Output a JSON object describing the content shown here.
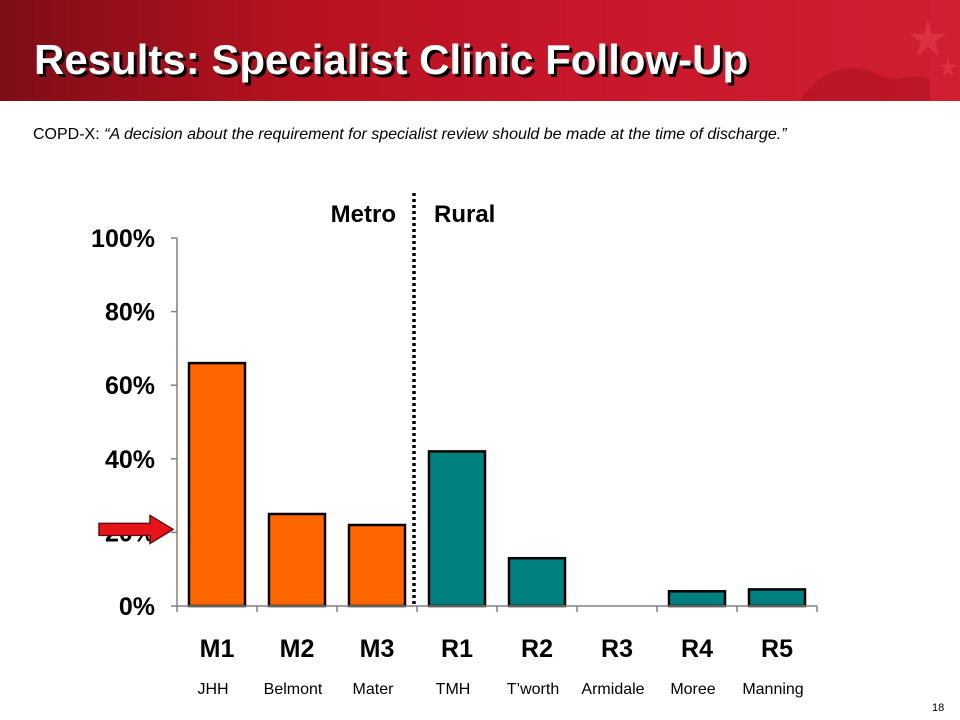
{
  "slide": {
    "title": "Results: Specialist Clinic Follow-Up",
    "quote_prefix": "COPD-X: ",
    "quote_body": "“A decision about the requirement for specialist review should be made at the time of discharge.”",
    "page_number": "18"
  },
  "colors": {
    "header": "#c8162a",
    "metro_bar": "#ff6600",
    "rural_bar": "#008080",
    "arrow": "#e8141c"
  },
  "chart_data": {
    "type": "bar",
    "categories": [
      "M1",
      "M2",
      "M3",
      "R1",
      "R2",
      "R3",
      "R4",
      "R5"
    ],
    "site_names": [
      "JHH",
      "Belmont",
      "Mater",
      "TMH",
      "T’worth",
      "Armidale",
      "Moree",
      "Manning"
    ],
    "values": [
      66,
      25,
      22,
      42,
      13,
      0,
      4,
      4.5
    ],
    "groups": [
      "Metro",
      "Metro",
      "Metro",
      "Rural",
      "Rural",
      "Rural",
      "Rural",
      "Rural"
    ],
    "group_labels": [
      "Metro",
      "Rural"
    ],
    "yticks": [
      "0%",
      "20%",
      "40%",
      "60%",
      "80%",
      "100%"
    ],
    "ylim": [
      0,
      100
    ],
    "grid": false,
    "arrow_marker_value": 20
  }
}
